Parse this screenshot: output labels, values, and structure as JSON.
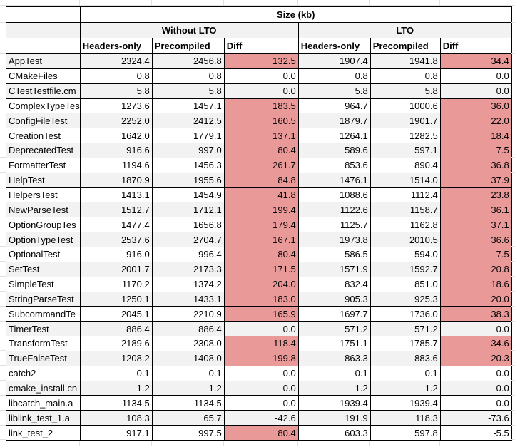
{
  "table": {
    "title": "Size (kb)",
    "groups": [
      "Without LTO",
      "LTO"
    ],
    "columns": [
      "Headers-only",
      "Precompiled",
      "Diff",
      "Headers-only",
      "Precompiled",
      "Diff"
    ],
    "highlight_rule": "diff cell shaded red when value > 0",
    "rows": [
      {
        "label": "AppTest",
        "values": [
          2324.4,
          2456.8,
          132.5,
          1907.4,
          1941.8,
          34.4
        ]
      },
      {
        "label": "CMakeFiles",
        "values": [
          0.8,
          0.8,
          0.0,
          0.8,
          0.8,
          0.0
        ]
      },
      {
        "label": "CTestTestfile.cm",
        "values": [
          5.8,
          5.8,
          0.0,
          5.8,
          5.8,
          0.0
        ]
      },
      {
        "label": "ComplexTypeTes",
        "values": [
          1273.6,
          1457.1,
          183.5,
          964.7,
          1000.6,
          36.0
        ]
      },
      {
        "label": "ConfigFileTest",
        "values": [
          2252.0,
          2412.5,
          160.5,
          1879.7,
          1901.7,
          22.0
        ]
      },
      {
        "label": "CreationTest",
        "values": [
          1642.0,
          1779.1,
          137.1,
          1264.1,
          1282.5,
          18.4
        ]
      },
      {
        "label": "DeprecatedTest",
        "values": [
          916.6,
          997.0,
          80.4,
          589.6,
          597.1,
          7.5
        ]
      },
      {
        "label": "FormatterTest",
        "values": [
          1194.6,
          1456.3,
          261.7,
          853.6,
          890.4,
          36.8
        ]
      },
      {
        "label": "HelpTest",
        "values": [
          1870.9,
          1955.6,
          84.8,
          1476.1,
          1514.0,
          37.9
        ]
      },
      {
        "label": "HelpersTest",
        "values": [
          1413.1,
          1454.9,
          41.8,
          1088.6,
          1112.4,
          23.8
        ]
      },
      {
        "label": "NewParseTest",
        "values": [
          1512.7,
          1712.1,
          199.4,
          1122.6,
          1158.7,
          36.1
        ]
      },
      {
        "label": "OptionGroupTes",
        "values": [
          1477.4,
          1656.8,
          179.4,
          1125.7,
          1162.8,
          37.1
        ]
      },
      {
        "label": "OptionTypeTest",
        "values": [
          2537.6,
          2704.7,
          167.1,
          1973.8,
          2010.5,
          36.6
        ]
      },
      {
        "label": "OptionalTest",
        "values": [
          916.0,
          996.4,
          80.4,
          586.5,
          594.0,
          7.5
        ]
      },
      {
        "label": "SetTest",
        "values": [
          2001.7,
          2173.3,
          171.5,
          1571.9,
          1592.7,
          20.8
        ]
      },
      {
        "label": "SimpleTest",
        "values": [
          1170.2,
          1374.2,
          204.0,
          832.4,
          851.0,
          18.6
        ]
      },
      {
        "label": "StringParseTest",
        "values": [
          1250.1,
          1433.1,
          183.0,
          905.3,
          925.3,
          20.0
        ]
      },
      {
        "label": "SubcommandTe",
        "values": [
          2045.1,
          2210.9,
          165.9,
          1697.7,
          1736.0,
          38.3
        ]
      },
      {
        "label": "TimerTest",
        "values": [
          886.4,
          886.4,
          0.0,
          571.2,
          571.2,
          0.0
        ]
      },
      {
        "label": "TransformTest",
        "values": [
          2189.6,
          2308.0,
          118.4,
          1751.1,
          1785.7,
          34.6
        ]
      },
      {
        "label": "TrueFalseTest",
        "values": [
          1208.2,
          1408.0,
          199.8,
          863.3,
          883.6,
          20.3
        ]
      },
      {
        "label": "catch2",
        "values": [
          0.1,
          0.1,
          0.0,
          0.1,
          0.1,
          0.0
        ]
      },
      {
        "label": "cmake_install.cn",
        "values": [
          1.2,
          1.2,
          0.0,
          1.2,
          1.2,
          0.0
        ]
      },
      {
        "label": "libcatch_main.a",
        "values": [
          1134.5,
          1134.5,
          0.0,
          1939.4,
          1939.4,
          0.0
        ]
      },
      {
        "label": "liblink_test_1.a",
        "values": [
          108.3,
          65.7,
          -42.6,
          191.9,
          118.3,
          -73.6
        ]
      },
      {
        "label": "link_test_2",
        "values": [
          917.1,
          997.5,
          80.4,
          603.3,
          597.8,
          -5.5
        ]
      }
    ]
  },
  "colors": {
    "highlight": "#ea9999",
    "band": "#f2f2f2",
    "gridline": "#e0e0e0",
    "border": "#000000"
  }
}
